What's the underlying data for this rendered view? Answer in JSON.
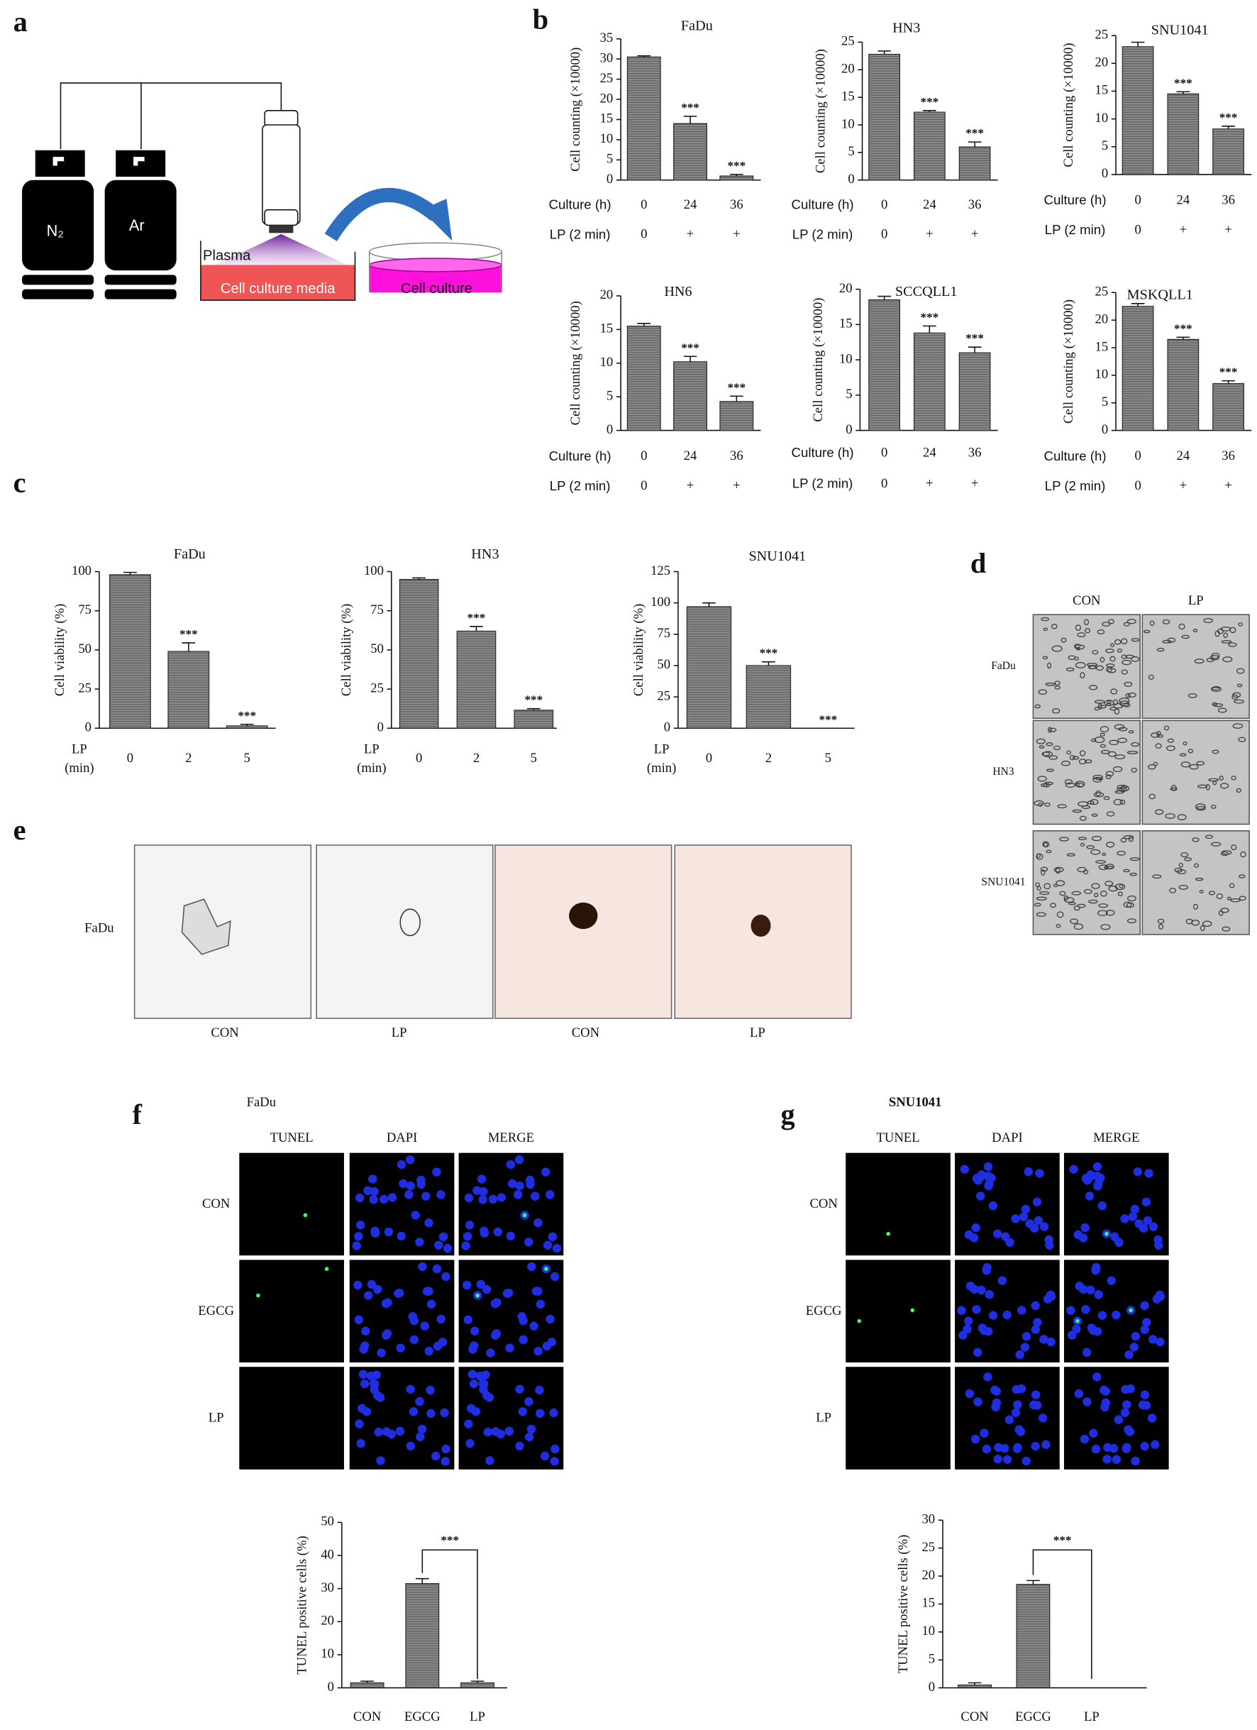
{
  "panel_labels": [
    "a",
    "b",
    "c",
    "d",
    "e",
    "f",
    "g"
  ],
  "diagram": {
    "gases": [
      "N₂",
      "Ar"
    ],
    "plasma": "Plasma",
    "media": "Cell culture media",
    "dish": "Cell culture"
  },
  "micrographs_d": {
    "columns": [
      "CON",
      "LP"
    ],
    "rows": [
      "FaDu",
      "HN3",
      "SNU1041"
    ]
  },
  "spheroids_e": {
    "row": "FaDu",
    "columns": [
      "CON",
      "LP",
      "CON",
      "LP"
    ]
  },
  "tunel_f": {
    "title": "FaDu",
    "columns": [
      "TUNEL",
      "DAPI",
      "MERGE"
    ],
    "rows": [
      "CON",
      "EGCG",
      "LP"
    ]
  },
  "tunel_g": {
    "title": "SNU1041",
    "columns": [
      "TUNEL",
      "DAPI",
      "MERGE"
    ],
    "rows": [
      "CON",
      "EGCG",
      "LP"
    ]
  },
  "chart_data": [
    {
      "type": "bar",
      "title": "FaDu",
      "y_label": "Cell counting (×10000)",
      "ylim": [
        0,
        35
      ],
      "yticks": [
        0,
        5,
        10,
        15,
        20,
        25,
        30,
        35
      ],
      "x_label": "Culture (h)",
      "categories": [
        "0",
        "24",
        "36"
      ],
      "x_label2": "LP (2 min)",
      "categories2": [
        "0",
        "+",
        "+"
      ],
      "values": [
        30.5,
        14,
        1
      ],
      "errors": [
        0.3,
        1.8,
        0.4
      ],
      "annotations": [
        null,
        "***",
        "***"
      ],
      "color": "#8a8a8a"
    },
    {
      "type": "bar",
      "title": "HN3",
      "y_label": "Cell counting (×10000)",
      "ylim": [
        0,
        25
      ],
      "yticks": [
        0,
        5,
        10,
        15,
        20,
        25
      ],
      "x_label": "Culture (h)",
      "categories": [
        "0",
        "24",
        "36"
      ],
      "x_label2": "LP (2 min)",
      "categories2": [
        "0",
        "+",
        "+"
      ],
      "values": [
        22.8,
        12.3,
        6
      ],
      "errors": [
        0.6,
        0.3,
        0.9
      ],
      "annotations": [
        null,
        "***",
        "***"
      ],
      "color": "#8a8a8a"
    },
    {
      "type": "bar",
      "title": "SNU1041",
      "y_label": "Cell counting (×10000)",
      "ylim": [
        0,
        25
      ],
      "yticks": [
        0,
        5,
        10,
        15,
        20,
        25
      ],
      "x_label": "Culture (h)",
      "categories": [
        "0",
        "24",
        "36"
      ],
      "x_label2": "LP (2 min)",
      "categories2": [
        "0",
        "+",
        "+"
      ],
      "values": [
        23,
        14.5,
        8.2
      ],
      "errors": [
        0.8,
        0.4,
        0.5
      ],
      "annotations": [
        null,
        "***",
        "***"
      ],
      "color": "#8a8a8a"
    },
    {
      "type": "bar",
      "title": "HN6",
      "y_label": "Cell counting (×10000)",
      "ylim": [
        0,
        20
      ],
      "yticks": [
        0,
        5,
        10,
        15,
        20
      ],
      "x_label": "Culture (h)",
      "categories": [
        "0",
        "24",
        "36"
      ],
      "x_label2": "LP (2 min)",
      "categories2": [
        "0",
        "+",
        "+"
      ],
      "values": [
        15.5,
        10.2,
        4.3
      ],
      "errors": [
        0.4,
        0.8,
        0.8
      ],
      "annotations": [
        null,
        "***",
        "***"
      ],
      "color": "#8a8a8a"
    },
    {
      "type": "bar",
      "title": "SCCQLL1",
      "y_label": "Cell counting (×10000)",
      "ylim": [
        0,
        20
      ],
      "yticks": [
        0,
        5,
        10,
        15,
        20
      ],
      "x_label": "Culture (h)",
      "categories": [
        "0",
        "24",
        "36"
      ],
      "x_label2": "LP (2 min)",
      "categories2": [
        "0",
        "+",
        "+"
      ],
      "values": [
        18.5,
        13.8,
        11
      ],
      "errors": [
        0.5,
        1,
        0.8
      ],
      "annotations": [
        null,
        "***",
        "***"
      ],
      "color": "#8a8a8a"
    },
    {
      "type": "bar",
      "title": "MSKQLL1",
      "y_label": "Cell counting (×10000)",
      "ylim": [
        0,
        25
      ],
      "yticks": [
        0,
        5,
        10,
        15,
        20,
        25
      ],
      "x_label": "Culture (h)",
      "categories": [
        "0",
        "24",
        "36"
      ],
      "x_label2": "LP (2 min)",
      "categories2": [
        "0",
        "+",
        "+"
      ],
      "values": [
        22.5,
        16.5,
        8.5
      ],
      "errors": [
        0.5,
        0.4,
        0.5
      ],
      "annotations": [
        null,
        "***",
        "***"
      ],
      "color": "#8a8a8a"
    },
    {
      "type": "bar",
      "title": "FaDu",
      "y_label": "Cell viability (%)",
      "ylim": [
        0,
        100
      ],
      "yticks": [
        0,
        25,
        50,
        75,
        100
      ],
      "x_label": [
        "LP",
        "(min)"
      ],
      "categories": [
        "0",
        "2",
        "5"
      ],
      "values": [
        98,
        49,
        1.5
      ],
      "errors": [
        1.5,
        5.5,
        1
      ],
      "annotations": [
        null,
        "***",
        "***"
      ],
      "color": "#8a8a8a"
    },
    {
      "type": "bar",
      "title": "HN3",
      "y_label": "Cell viability (%)",
      "ylim": [
        0,
        100
      ],
      "yticks": [
        0,
        25,
        50,
        75,
        100
      ],
      "x_label": [
        "LP",
        "(min)"
      ],
      "categories": [
        "0",
        "2",
        "5"
      ],
      "values": [
        95,
        62,
        11.5
      ],
      "errors": [
        1,
        3,
        1
      ],
      "annotations": [
        null,
        "***",
        "***"
      ],
      "color": "#8a8a8a"
    },
    {
      "type": "bar",
      "title": "SNU1041",
      "y_label": "Cell viability (%)",
      "ylim": [
        0,
        125
      ],
      "yticks": [
        0,
        25,
        50,
        75,
        100,
        125
      ],
      "x_label": [
        "LP",
        "(min)"
      ],
      "categories": [
        "0",
        "2",
        "5"
      ],
      "values": [
        97,
        50,
        0
      ],
      "errors": [
        3,
        3,
        0
      ],
      "annotations": [
        null,
        "***",
        "***"
      ],
      "color": "#8a8a8a"
    },
    {
      "type": "bar",
      "y_label": "TUNEL positive cells (%)",
      "ylim": [
        0,
        50
      ],
      "yticks": [
        0,
        10,
        20,
        30,
        40,
        50
      ],
      "categories": [
        "CON",
        "EGCG",
        "LP"
      ],
      "values": [
        1.5,
        31.5,
        1.5
      ],
      "errors": [
        0.5,
        1.5,
        0.5
      ],
      "comparison": "***",
      "color": "#8a8a8a"
    },
    {
      "type": "bar",
      "y_label": "TUNEL positive cells (%)",
      "ylim": [
        0,
        30
      ],
      "yticks": [
        0,
        5,
        10,
        15,
        20,
        25,
        30
      ],
      "categories": [
        "CON",
        "EGCG",
        "LP"
      ],
      "values": [
        0.5,
        18.5,
        0
      ],
      "errors": [
        0.4,
        0.7,
        0
      ],
      "comparison": "***",
      "color": "#8a8a8a"
    }
  ]
}
